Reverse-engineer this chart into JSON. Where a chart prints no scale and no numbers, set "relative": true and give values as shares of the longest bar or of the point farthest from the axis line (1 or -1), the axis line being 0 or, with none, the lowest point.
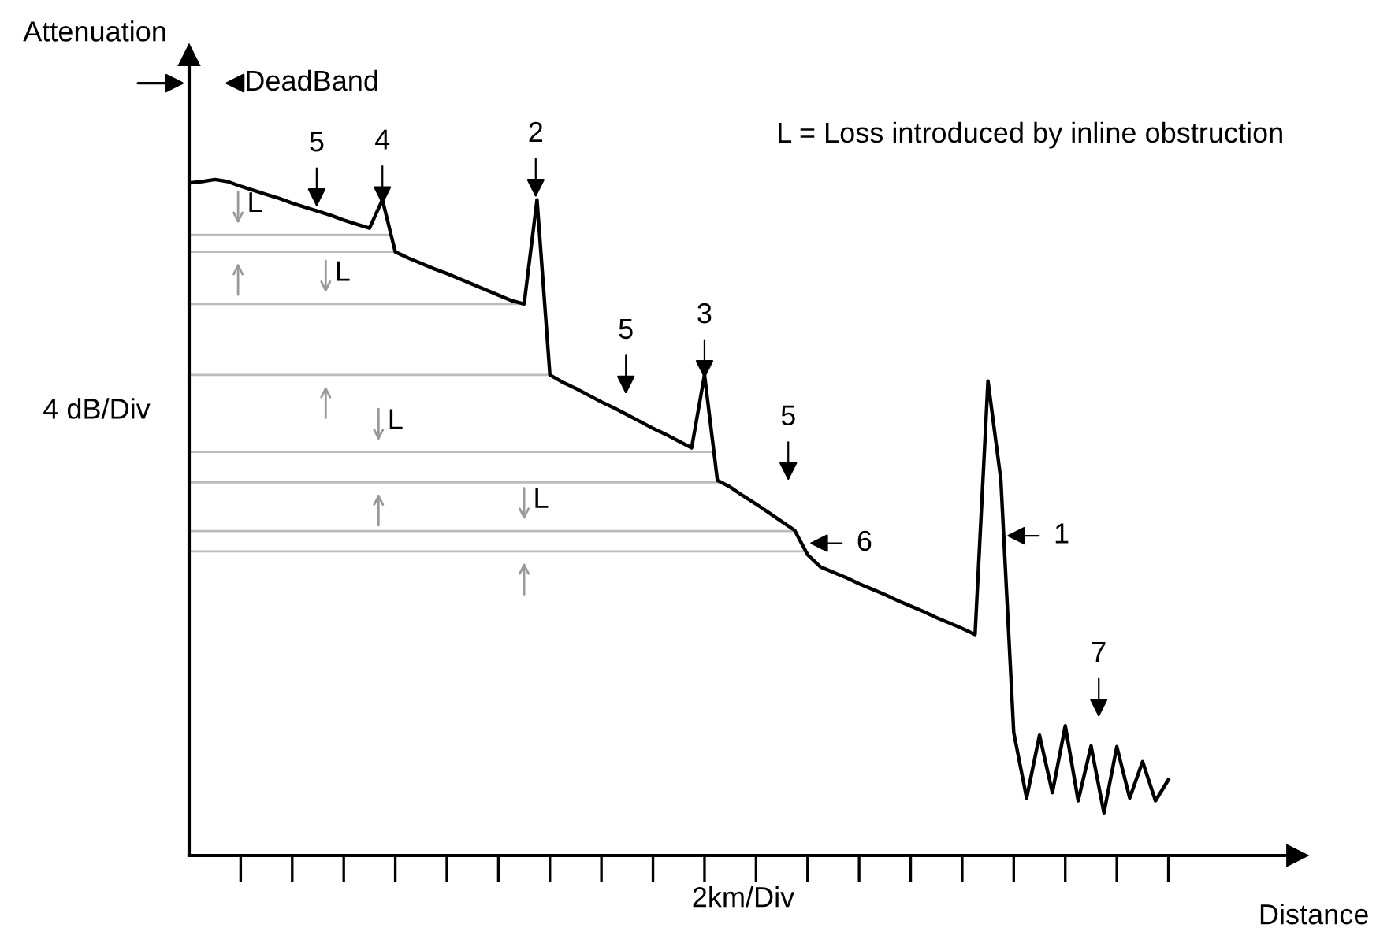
{
  "chart_data": {
    "type": "line",
    "relative": true,
    "xlabel": "Distance",
    "ylabel": "Attenuation",
    "legend": false,
    "grid": false,
    "marker": "none",
    "line_style": "solid",
    "categories": [
      null,
      null,
      null,
      null,
      null,
      null,
      null,
      null,
      null,
      null,
      null,
      null,
      null,
      null,
      null,
      null,
      null,
      null,
      null,
      null,
      null,
      null,
      null,
      null,
      null,
      null,
      null,
      null,
      null,
      null,
      null,
      null,
      null,
      null,
      null,
      null,
      null,
      null,
      null,
      null,
      null,
      null,
      null,
      null,
      null,
      null,
      null,
      null,
      null,
      null,
      null,
      null,
      null,
      null,
      null,
      null,
      null,
      null,
      null,
      null,
      null,
      null,
      null,
      null,
      null,
      null,
      null,
      null,
      null,
      null,
      null,
      null,
      null,
      null,
      null,
      null,
      null
    ],
    "series": [
      {
        "color": "#000000",
        "values": [
          0.995,
          0.997,
          1.0,
          0.997,
          0.99,
          0.984,
          0.978,
          0.972,
          0.965,
          0.959,
          0.953,
          0.947,
          0.94,
          0.934,
          0.928,
          0.97,
          0.893,
          0.884,
          0.876,
          0.868,
          0.861,
          0.853,
          0.845,
          0.837,
          0.829,
          0.821,
          0.816,
          0.97,
          0.711,
          0.7,
          0.691,
          0.681,
          0.671,
          0.662,
          0.652,
          0.642,
          0.632,
          0.623,
          0.613,
          0.603,
          0.711,
          0.555,
          0.545,
          0.532,
          0.52,
          0.507,
          0.494,
          0.481,
          0.445,
          0.427,
          0.419,
          0.411,
          0.402,
          0.394,
          0.386,
          0.377,
          0.369,
          0.361,
          0.352,
          0.344,
          0.336,
          0.327,
          0.702,
          0.556,
          0.182,
          0.085,
          0.178,
          0.093,
          0.192,
          0.081,
          0.162,
          0.063,
          0.161,
          0.085,
          0.139,
          0.081,
          0.112
        ]
      }
    ],
    "ref_lines": [
      {
        "axis": "y",
        "value": 0.918,
        "label": "L",
        "color": "#bbbbbb"
      },
      {
        "axis": "y",
        "value": 0.893,
        "color": "#bbbbbb"
      },
      {
        "axis": "y",
        "value": 0.816,
        "label": "L",
        "color": "#bbbbbb"
      },
      {
        "axis": "y",
        "value": 0.711,
        "color": "#bbbbbb"
      },
      {
        "axis": "y",
        "value": 0.597,
        "label": "L",
        "color": "#bbbbbb"
      },
      {
        "axis": "y",
        "value": 0.552,
        "color": "#bbbbbb"
      },
      {
        "axis": "y",
        "value": 0.48,
        "label": "L",
        "color": "#bbbbbb"
      },
      {
        "axis": "y",
        "value": 0.45,
        "color": "#bbbbbb"
      }
    ],
    "annotations": [
      "L = Loss introduced by inline obstruction",
      "4 dB/Div",
      "2km/Div",
      "DeadBand",
      "5",
      "4",
      "2",
      "5",
      "3",
      "5",
      "6",
      "1",
      "7"
    ]
  }
}
